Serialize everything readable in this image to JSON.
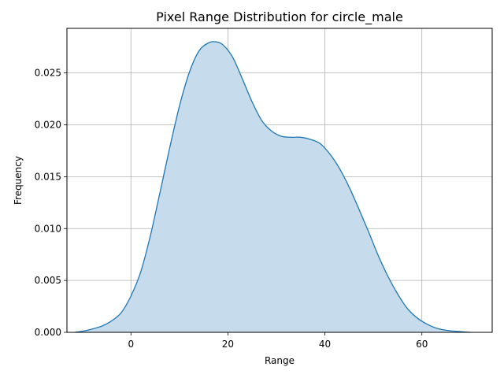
{
  "chart_data": {
    "type": "area",
    "title": "Pixel Range Distribution for circle_male",
    "xlabel": "Range",
    "ylabel": "Frequency",
    "xlim": [
      -13.2,
      74.5
    ],
    "ylim": [
      0.0,
      0.0293
    ],
    "grid": true,
    "x_ticks": [
      0,
      20,
      40,
      60
    ],
    "x_tick_labels": [
      "0",
      "20",
      "40",
      "60"
    ],
    "y_ticks": [
      0.0,
      0.005,
      0.01,
      0.015,
      0.02,
      0.025
    ],
    "y_tick_labels": [
      "0.000",
      "0.005",
      "0.010",
      "0.015",
      "0.020",
      "0.025"
    ],
    "series": [
      {
        "line_color": "#1f77b4",
        "fill_color": "#c6dcec",
        "x": [
          -11.5,
          -9,
          -6,
          -4,
          -2,
          0,
          2,
          4,
          6,
          8,
          10,
          12,
          14,
          16,
          17.5,
          19,
          21,
          23,
          25,
          27,
          29,
          31,
          33,
          35,
          37,
          39,
          41,
          43,
          45,
          47,
          49,
          51,
          53,
          55,
          57,
          59,
          61,
          63,
          65,
          67,
          70
        ],
        "y": [
          0.0,
          0.0002,
          0.0006,
          0.0011,
          0.0019,
          0.0035,
          0.0058,
          0.0093,
          0.0135,
          0.0178,
          0.0218,
          0.025,
          0.0271,
          0.0279,
          0.028,
          0.0277,
          0.0265,
          0.0244,
          0.0222,
          0.0204,
          0.0194,
          0.0189,
          0.0188,
          0.0188,
          0.0186,
          0.0182,
          0.0172,
          0.0158,
          0.014,
          0.0119,
          0.0097,
          0.0074,
          0.0054,
          0.0037,
          0.0023,
          0.0014,
          0.0008,
          0.0004,
          0.0002,
          0.0001,
          0.0
        ]
      }
    ]
  }
}
